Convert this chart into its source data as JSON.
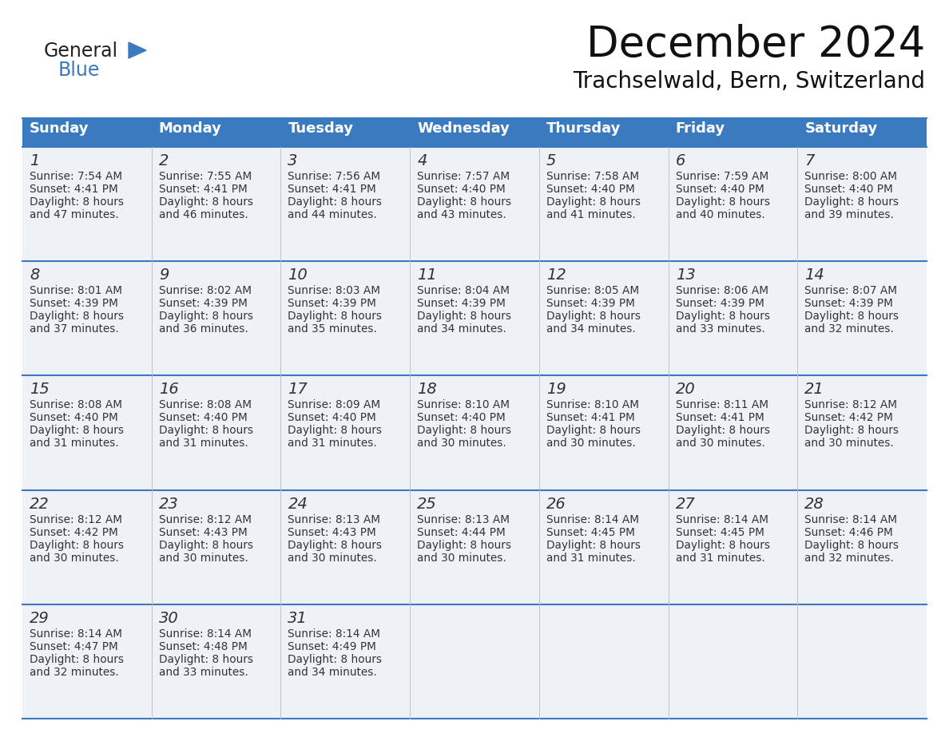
{
  "title": "December 2024",
  "subtitle": "Trachselwald, Bern, Switzerland",
  "header_color": "#3a7abf",
  "header_text_color": "#ffffff",
  "cell_bg_color": "#eef2f7",
  "text_color": "#333333",
  "line_color": "#3a7abf",
  "days_of_week": [
    "Sunday",
    "Monday",
    "Tuesday",
    "Wednesday",
    "Thursday",
    "Friday",
    "Saturday"
  ],
  "weeks": [
    [
      {
        "day": 1,
        "sunrise": "7:54 AM",
        "sunset": "4:41 PM",
        "daylight_hours": 8,
        "daylight_minutes": 47
      },
      {
        "day": 2,
        "sunrise": "7:55 AM",
        "sunset": "4:41 PM",
        "daylight_hours": 8,
        "daylight_minutes": 46
      },
      {
        "day": 3,
        "sunrise": "7:56 AM",
        "sunset": "4:41 PM",
        "daylight_hours": 8,
        "daylight_minutes": 44
      },
      {
        "day": 4,
        "sunrise": "7:57 AM",
        "sunset": "4:40 PM",
        "daylight_hours": 8,
        "daylight_minutes": 43
      },
      {
        "day": 5,
        "sunrise": "7:58 AM",
        "sunset": "4:40 PM",
        "daylight_hours": 8,
        "daylight_minutes": 41
      },
      {
        "day": 6,
        "sunrise": "7:59 AM",
        "sunset": "4:40 PM",
        "daylight_hours": 8,
        "daylight_minutes": 40
      },
      {
        "day": 7,
        "sunrise": "8:00 AM",
        "sunset": "4:40 PM",
        "daylight_hours": 8,
        "daylight_minutes": 39
      }
    ],
    [
      {
        "day": 8,
        "sunrise": "8:01 AM",
        "sunset": "4:39 PM",
        "daylight_hours": 8,
        "daylight_minutes": 37
      },
      {
        "day": 9,
        "sunrise": "8:02 AM",
        "sunset": "4:39 PM",
        "daylight_hours": 8,
        "daylight_minutes": 36
      },
      {
        "day": 10,
        "sunrise": "8:03 AM",
        "sunset": "4:39 PM",
        "daylight_hours": 8,
        "daylight_minutes": 35
      },
      {
        "day": 11,
        "sunrise": "8:04 AM",
        "sunset": "4:39 PM",
        "daylight_hours": 8,
        "daylight_minutes": 34
      },
      {
        "day": 12,
        "sunrise": "8:05 AM",
        "sunset": "4:39 PM",
        "daylight_hours": 8,
        "daylight_minutes": 34
      },
      {
        "day": 13,
        "sunrise": "8:06 AM",
        "sunset": "4:39 PM",
        "daylight_hours": 8,
        "daylight_minutes": 33
      },
      {
        "day": 14,
        "sunrise": "8:07 AM",
        "sunset": "4:39 PM",
        "daylight_hours": 8,
        "daylight_minutes": 32
      }
    ],
    [
      {
        "day": 15,
        "sunrise": "8:08 AM",
        "sunset": "4:40 PM",
        "daylight_hours": 8,
        "daylight_minutes": 31
      },
      {
        "day": 16,
        "sunrise": "8:08 AM",
        "sunset": "4:40 PM",
        "daylight_hours": 8,
        "daylight_minutes": 31
      },
      {
        "day": 17,
        "sunrise": "8:09 AM",
        "sunset": "4:40 PM",
        "daylight_hours": 8,
        "daylight_minutes": 31
      },
      {
        "day": 18,
        "sunrise": "8:10 AM",
        "sunset": "4:40 PM",
        "daylight_hours": 8,
        "daylight_minutes": 30
      },
      {
        "day": 19,
        "sunrise": "8:10 AM",
        "sunset": "4:41 PM",
        "daylight_hours": 8,
        "daylight_minutes": 30
      },
      {
        "day": 20,
        "sunrise": "8:11 AM",
        "sunset": "4:41 PM",
        "daylight_hours": 8,
        "daylight_minutes": 30
      },
      {
        "day": 21,
        "sunrise": "8:12 AM",
        "sunset": "4:42 PM",
        "daylight_hours": 8,
        "daylight_minutes": 30
      }
    ],
    [
      {
        "day": 22,
        "sunrise": "8:12 AM",
        "sunset": "4:42 PM",
        "daylight_hours": 8,
        "daylight_minutes": 30
      },
      {
        "day": 23,
        "sunrise": "8:12 AM",
        "sunset": "4:43 PM",
        "daylight_hours": 8,
        "daylight_minutes": 30
      },
      {
        "day": 24,
        "sunrise": "8:13 AM",
        "sunset": "4:43 PM",
        "daylight_hours": 8,
        "daylight_minutes": 30
      },
      {
        "day": 25,
        "sunrise": "8:13 AM",
        "sunset": "4:44 PM",
        "daylight_hours": 8,
        "daylight_minutes": 30
      },
      {
        "day": 26,
        "sunrise": "8:14 AM",
        "sunset": "4:45 PM",
        "daylight_hours": 8,
        "daylight_minutes": 31
      },
      {
        "day": 27,
        "sunrise": "8:14 AM",
        "sunset": "4:45 PM",
        "daylight_hours": 8,
        "daylight_minutes": 31
      },
      {
        "day": 28,
        "sunrise": "8:14 AM",
        "sunset": "4:46 PM",
        "daylight_hours": 8,
        "daylight_minutes": 32
      }
    ],
    [
      {
        "day": 29,
        "sunrise": "8:14 AM",
        "sunset": "4:47 PM",
        "daylight_hours": 8,
        "daylight_minutes": 32
      },
      {
        "day": 30,
        "sunrise": "8:14 AM",
        "sunset": "4:48 PM",
        "daylight_hours": 8,
        "daylight_minutes": 33
      },
      {
        "day": 31,
        "sunrise": "8:14 AM",
        "sunset": "4:49 PM",
        "daylight_hours": 8,
        "daylight_minutes": 34
      },
      null,
      null,
      null,
      null
    ]
  ],
  "logo_text_general": "General",
  "logo_text_blue": "Blue",
  "logo_triangle_color": "#3a7abf",
  "fig_width": 11.88,
  "fig_height": 9.18,
  "dpi": 100
}
